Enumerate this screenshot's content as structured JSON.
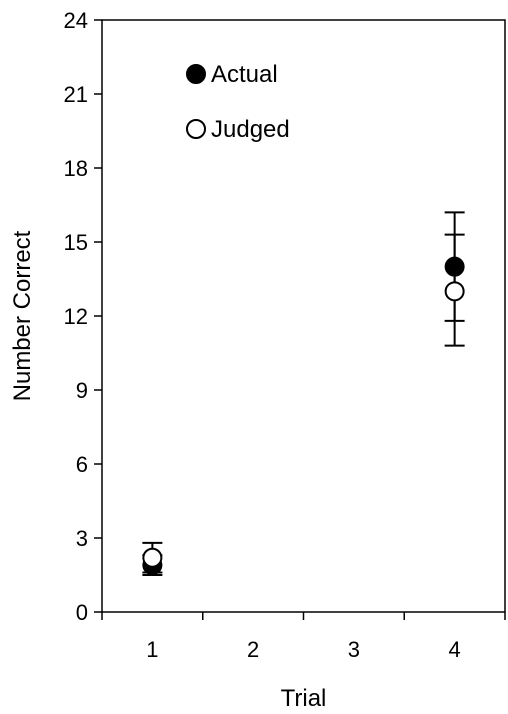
{
  "chart_data": {
    "type": "scatter",
    "xlabel": "Trial",
    "ylabel": "Number Correct",
    "x_categories": [
      "1",
      "2",
      "3",
      "4"
    ],
    "ylim": [
      0,
      24
    ],
    "yticks": [
      0,
      3,
      6,
      9,
      12,
      15,
      18,
      21,
      24
    ],
    "grid": false,
    "legend_position": "top-left",
    "series": [
      {
        "name": "Actual",
        "marker": "filled-circle",
        "color": "#000000",
        "points": [
          {
            "x": "1",
            "y": 1.9,
            "err_low": 1.5,
            "err_high": 2.3
          },
          {
            "x": "4",
            "y": 14.0,
            "err_low": 11.8,
            "err_high": 16.2
          }
        ]
      },
      {
        "name": "Judged",
        "marker": "open-circle",
        "color": "#000000",
        "points": [
          {
            "x": "1",
            "y": 2.2,
            "err_low": 1.6,
            "err_high": 2.8
          },
          {
            "x": "4",
            "y": 13.0,
            "err_low": 10.8,
            "err_high": 15.3
          }
        ]
      }
    ]
  }
}
